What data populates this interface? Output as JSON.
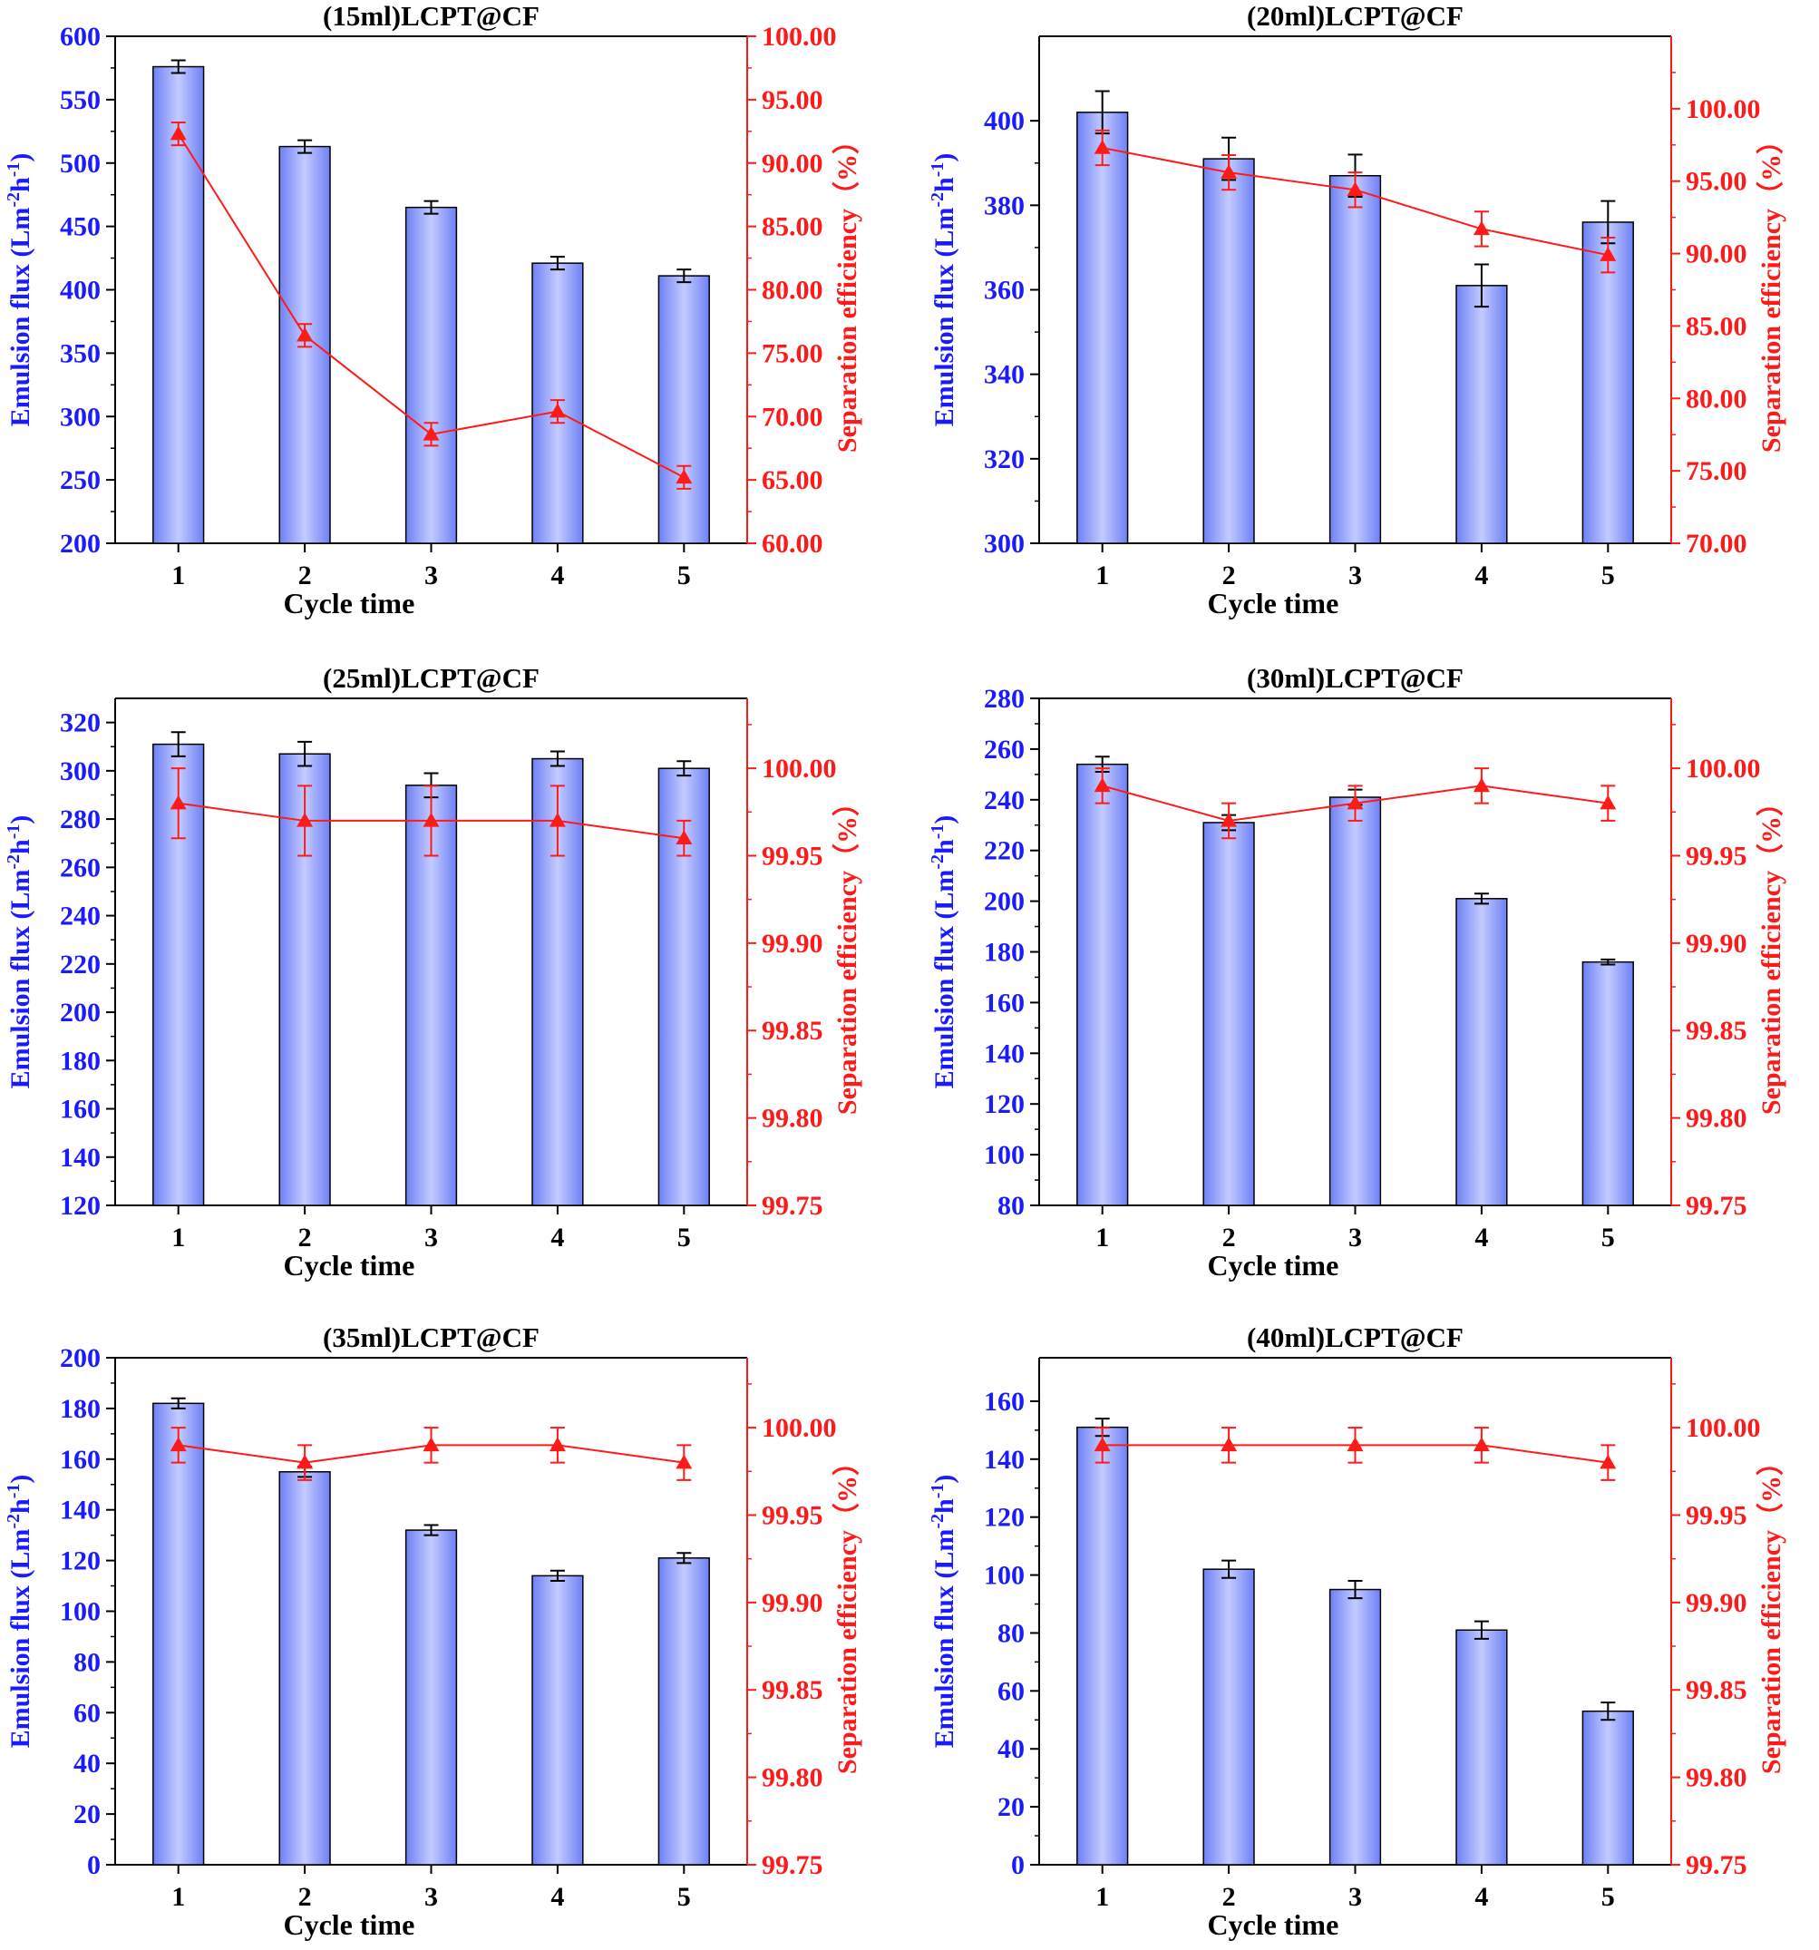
{
  "chart_data": [
    {
      "type": "bar+line",
      "title": "(15ml)LCPT@CF",
      "xlabel": "Cycle time",
      "ylabel_left": "Emulsion flux (Lm-2h-1)",
      "ylabel_right": "Separation efficiency（%）",
      "categories": [
        "1",
        "2",
        "3",
        "4",
        "5"
      ],
      "ylim_left": [
        200,
        600
      ],
      "yticks_left": [
        "200",
        "250",
        "300",
        "350",
        "400",
        "450",
        "500",
        "550",
        "600"
      ],
      "ylim_right": [
        60,
        100
      ],
      "yticks_right": [
        "60.00",
        "65.00",
        "70.00",
        "75.00",
        "80.00",
        "85.00",
        "90.00",
        "95.00",
        "100.00"
      ],
      "series": [
        {
          "name": "Emulsion flux",
          "axis": "left",
          "kind": "bar",
          "values": [
            576,
            513,
            465,
            421,
            411
          ],
          "errors": [
            5,
            5,
            5,
            5,
            5
          ]
        },
        {
          "name": "Separation efficiency",
          "axis": "right",
          "kind": "line",
          "values": [
            92.3,
            76.4,
            68.6,
            70.4,
            65.2
          ],
          "errors": [
            0.9,
            0.9,
            0.9,
            0.9,
            0.9
          ]
        }
      ]
    },
    {
      "type": "bar+line",
      "title": "(20ml)LCPT@CF",
      "xlabel": "Cycle time",
      "ylabel_left": "Emulsion flux (Lm-2h-1)",
      "ylabel_right": "Separation efficiency（%）",
      "categories": [
        "1",
        "2",
        "3",
        "4",
        "5"
      ],
      "ylim_left": [
        300,
        420
      ],
      "yticks_left": [
        "300",
        "320",
        "340",
        "360",
        "380",
        "400"
      ],
      "ylim_right": [
        70,
        105
      ],
      "yticks_right": [
        "70.00",
        "75.00",
        "80.00",
        "85.00",
        "90.00",
        "95.00",
        "100.00"
      ],
      "series": [
        {
          "name": "Emulsion flux",
          "axis": "left",
          "kind": "bar",
          "values": [
            402,
            391,
            387,
            361,
            376
          ],
          "errors": [
            5,
            5,
            5,
            5,
            5
          ]
        },
        {
          "name": "Separation efficiency",
          "axis": "right",
          "kind": "line",
          "values": [
            97.3,
            95.6,
            94.4,
            91.7,
            89.9
          ],
          "errors": [
            1.2,
            1.2,
            1.2,
            1.2,
            1.2
          ]
        }
      ]
    },
    {
      "type": "bar+line",
      "title": "(25ml)LCPT@CF",
      "xlabel": "Cycle time",
      "ylabel_left": "Emulsion flux (Lm-2h-1)",
      "ylabel_right": "Separation efficiency（%）",
      "categories": [
        "1",
        "2",
        "3",
        "4",
        "5"
      ],
      "ylim_left": [
        120,
        330
      ],
      "yticks_left": [
        "120",
        "140",
        "160",
        "180",
        "200",
        "220",
        "240",
        "260",
        "280",
        "300",
        "320"
      ],
      "ylim_right": [
        99.75,
        100.04
      ],
      "yticks_right": [
        "99.75",
        "99.80",
        "99.85",
        "99.90",
        "99.95",
        "100.00"
      ],
      "series": [
        {
          "name": "Emulsion flux",
          "axis": "left",
          "kind": "bar",
          "values": [
            311,
            307,
            294,
            305,
            301
          ],
          "errors": [
            5,
            5,
            5,
            3,
            3
          ]
        },
        {
          "name": "Separation efficiency",
          "axis": "right",
          "kind": "line",
          "values": [
            99.98,
            99.97,
            99.97,
            99.97,
            99.96
          ],
          "errors": [
            0.02,
            0.02,
            0.02,
            0.02,
            0.01
          ]
        }
      ]
    },
    {
      "type": "bar+line",
      "title": "(30ml)LCPT@CF",
      "xlabel": "Cycle time",
      "ylabel_left": "Emulsion flux (Lm-2h-1)",
      "ylabel_right": "Separation efficiency（%）",
      "categories": [
        "1",
        "2",
        "3",
        "4",
        "5"
      ],
      "ylim_left": [
        80,
        280
      ],
      "yticks_left": [
        "80",
        "100",
        "120",
        "140",
        "160",
        "180",
        "200",
        "220",
        "240",
        "260",
        "280"
      ],
      "ylim_right": [
        99.75,
        100.04
      ],
      "yticks_right": [
        "99.75",
        "99.80",
        "99.85",
        "99.90",
        "99.95",
        "100.00"
      ],
      "series": [
        {
          "name": "Emulsion flux",
          "axis": "left",
          "kind": "bar",
          "values": [
            254,
            231,
            241,
            201,
            176
          ],
          "errors": [
            3,
            3,
            3,
            2,
            1
          ]
        },
        {
          "name": "Separation efficiency",
          "axis": "right",
          "kind": "line",
          "values": [
            99.99,
            99.97,
            99.98,
            99.99,
            99.98
          ],
          "errors": [
            0.01,
            0.01,
            0.01,
            0.01,
            0.01
          ]
        }
      ]
    },
    {
      "type": "bar+line",
      "title": "(35ml)LCPT@CF",
      "xlabel": "Cycle time",
      "ylabel_left": "Emulsion flux (Lm-2h-1)",
      "ylabel_right": "Separation efficiency（%）",
      "categories": [
        "1",
        "2",
        "3",
        "4",
        "5"
      ],
      "ylim_left": [
        0,
        200
      ],
      "yticks_left": [
        "0",
        "20",
        "40",
        "60",
        "80",
        "100",
        "120",
        "140",
        "160",
        "180",
        "200"
      ],
      "ylim_right": [
        99.75,
        100.04
      ],
      "yticks_right": [
        "99.75",
        "99.80",
        "99.85",
        "99.90",
        "99.95",
        "100.00"
      ],
      "series": [
        {
          "name": "Emulsion flux",
          "axis": "left",
          "kind": "bar",
          "values": [
            182,
            155,
            132,
            114,
            121
          ],
          "errors": [
            2,
            2,
            2,
            2,
            2
          ]
        },
        {
          "name": "Separation efficiency",
          "axis": "right",
          "kind": "line",
          "values": [
            99.99,
            99.98,
            99.99,
            99.99,
            99.98
          ],
          "errors": [
            0.01,
            0.01,
            0.01,
            0.01,
            0.01
          ]
        }
      ]
    },
    {
      "type": "bar+line",
      "title": "(40ml)LCPT@CF",
      "xlabel": "Cycle time",
      "ylabel_left": "Emulsion flux (Lm-2h-1)",
      "ylabel_right": "Separation efficiency（%）",
      "categories": [
        "1",
        "2",
        "3",
        "4",
        "5"
      ],
      "ylim_left": [
        0,
        175
      ],
      "yticks_left": [
        "0",
        "20",
        "40",
        "60",
        "80",
        "100",
        "120",
        "140",
        "160"
      ],
      "ylim_right": [
        99.75,
        100.04
      ],
      "yticks_right": [
        "99.75",
        "99.80",
        "99.85",
        "99.90",
        "99.95",
        "100.00"
      ],
      "series": [
        {
          "name": "Emulsion flux",
          "axis": "left",
          "kind": "bar",
          "values": [
            151,
            102,
            95,
            81,
            53
          ],
          "errors": [
            3,
            3,
            3,
            3,
            3
          ]
        },
        {
          "name": "Separation efficiency",
          "axis": "right",
          "kind": "line",
          "values": [
            99.99,
            99.99,
            99.99,
            99.99,
            99.98
          ],
          "errors": [
            0.01,
            0.01,
            0.01,
            0.01,
            0.01
          ]
        }
      ]
    }
  ],
  "colors": {
    "bar_edge": "#000000",
    "bar_light": "#b9c3ff",
    "bar_mid": "#6f80f5",
    "left_axis": "#1a1aff",
    "right_axis": "#ff1a1a",
    "line": "#ff1a1a"
  }
}
